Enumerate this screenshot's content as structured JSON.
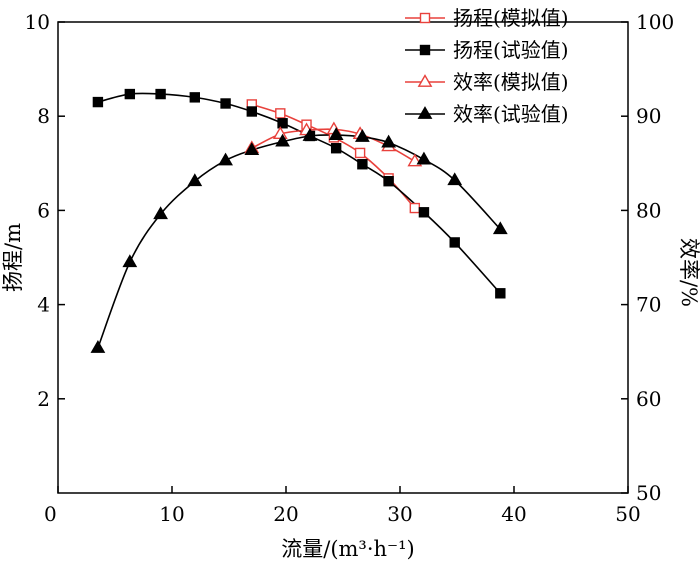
{
  "chart_data": {
    "type": "line",
    "xlabel": "流量/(m³·h⁻¹)",
    "ylabel_left": "扬程/m",
    "ylabel_right": "效率/%",
    "xlim": [
      0,
      50
    ],
    "ylim_left": [
      0,
      10
    ],
    "ylim_right": [
      50,
      100
    ],
    "xticks": [
      "0",
      "10",
      "20",
      "30",
      "40",
      "50"
    ],
    "yticks_left": [
      "2",
      "4",
      "6",
      "8",
      "10"
    ],
    "yticks_right": [
      "50",
      "60",
      "70",
      "80",
      "90",
      "100"
    ],
    "legend_position": "top-right",
    "series": [
      {
        "name": "扬程(模拟值)",
        "axis": "left",
        "color": "#e8413c",
        "marker": "square-open",
        "x": [
          17.0,
          19.5,
          21.8,
          24.2,
          26.5,
          29.0,
          31.3
        ],
        "y": [
          8.25,
          8.06,
          7.82,
          7.55,
          7.22,
          6.68,
          6.05
        ]
      },
      {
        "name": "扬程(试验值)",
        "axis": "left",
        "color": "#000000",
        "marker": "square-filled",
        "x": [
          3.5,
          6.3,
          9.0,
          12.0,
          14.7,
          17.0,
          19.7,
          22.1,
          24.4,
          26.7,
          29.0,
          32.1,
          34.8,
          38.8
        ],
        "y": [
          8.3,
          8.47,
          8.47,
          8.4,
          8.27,
          8.1,
          7.85,
          7.58,
          7.32,
          6.98,
          6.62,
          5.96,
          5.32,
          4.24
        ]
      },
      {
        "name": "效率(模拟值)",
        "axis": "right",
        "color": "#e8413c",
        "marker": "triangle-open",
        "x": [
          17.0,
          19.5,
          21.8,
          24.2,
          26.5,
          29.0,
          31.3
        ],
        "y": [
          86.6,
          88.1,
          88.5,
          88.6,
          88.1,
          86.8,
          85.2
        ]
      },
      {
        "name": "效率(试验值)",
        "axis": "right",
        "color": "#000000",
        "marker": "triangle-filled",
        "x": [
          3.5,
          6.3,
          9.0,
          12.0,
          14.7,
          17.0,
          19.7,
          22.1,
          24.4,
          26.7,
          29.0,
          32.1,
          34.8,
          38.8
        ],
        "y": [
          65.4,
          74.5,
          79.6,
          83.1,
          85.3,
          86.4,
          87.3,
          87.9,
          88.0,
          87.8,
          87.2,
          85.4,
          83.2,
          78.0
        ]
      }
    ]
  }
}
